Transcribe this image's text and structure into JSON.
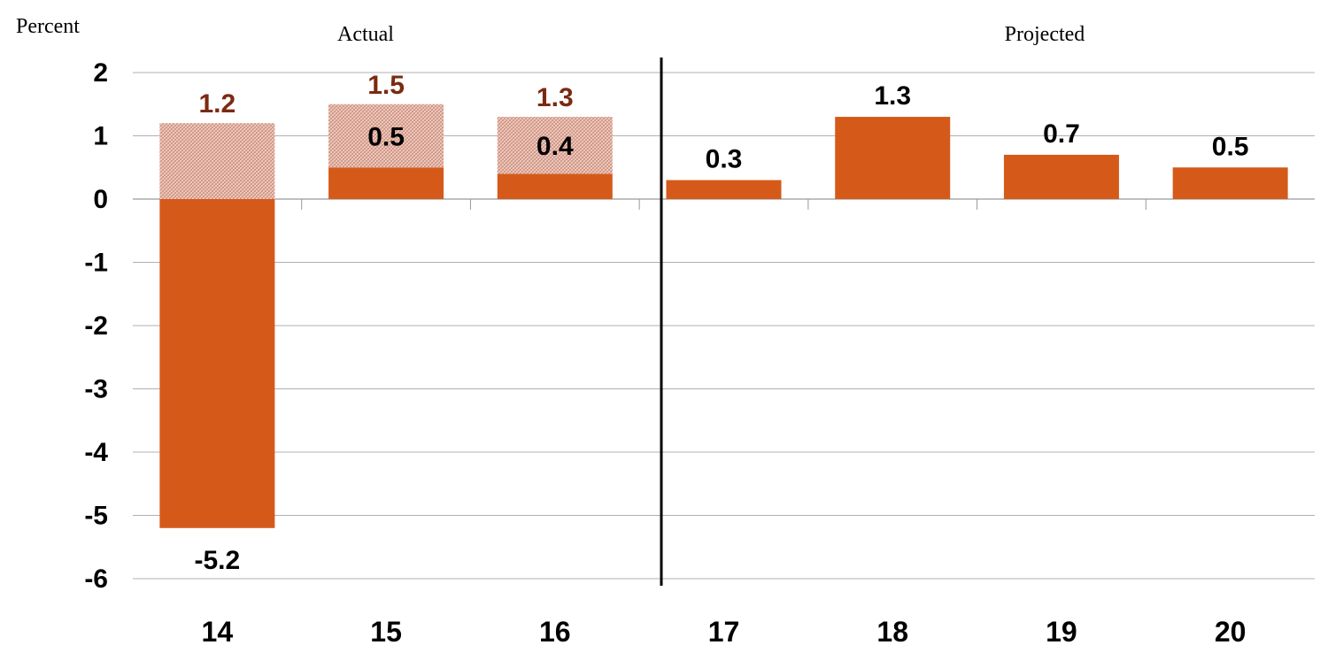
{
  "chart_data": {
    "type": "bar",
    "ylabel": "Percent",
    "ylim": [
      -6,
      2
    ],
    "yticks": [
      "2",
      "1",
      "0",
      "-1",
      "-2",
      "-3",
      "-4",
      "-5",
      "-6"
    ],
    "grid": true,
    "categories": [
      "14",
      "15",
      "16",
      "17",
      "18",
      "19",
      "20"
    ],
    "series": [
      {
        "values": [
          -5.2,
          0.5,
          0.4,
          0.3,
          1.3,
          0.7,
          0.5
        ]
      },
      {
        "values": [
          1.2,
          1.0,
          0.9,
          null,
          null,
          null,
          null
        ]
      }
    ],
    "value_labels": [
      "-5.2",
      "0.5",
      "0.4",
      "0.3",
      "1.3",
      "0.7",
      "0.5"
    ],
    "total_labels": [
      "1.2",
      "1.5",
      "1.3",
      null,
      null,
      null,
      null
    ],
    "annotations": {
      "actual": "Actual",
      "projected": "Projected"
    },
    "colors": {
      "solid": "#d55a1a",
      "hatched": "#e9b4a4",
      "total_label": "#7b2a12",
      "label": "#000000",
      "grid": "#b0b0b0"
    }
  }
}
